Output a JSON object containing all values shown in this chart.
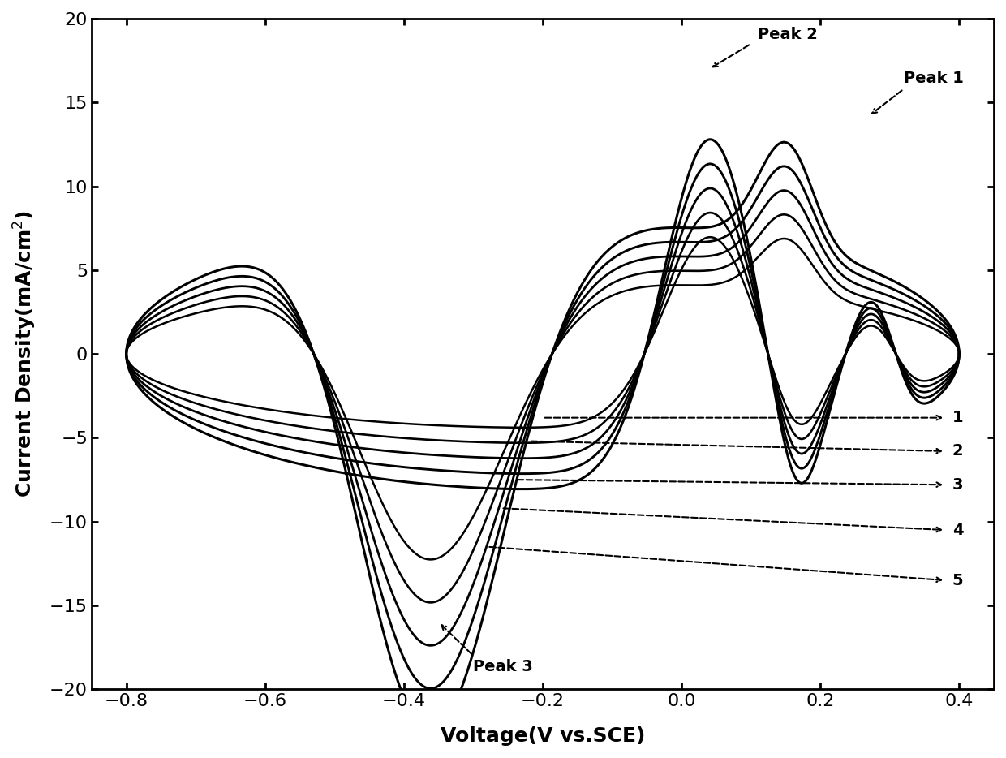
{
  "title": "",
  "xlabel": "Voltage(V vs.SCE)",
  "ylabel": "Current Density(mA/cm²)",
  "xlim": [
    -0.85,
    0.45
  ],
  "ylim": [
    -20,
    20
  ],
  "xticks": [
    -0.8,
    -0.6,
    -0.4,
    -0.2,
    0.0,
    0.2,
    0.4
  ],
  "yticks": [
    -20,
    -15,
    -10,
    -5,
    0,
    5,
    10,
    15,
    20
  ],
  "background_color": "#ffffff",
  "linewidth": 2.0,
  "n_cycles": 5,
  "peak1_label": "Peak 1",
  "peak2_label": "Peak 2",
  "peak3_label": "Peak 3",
  "cycle_labels": [
    "1",
    "2",
    "3",
    "4",
    "5"
  ]
}
